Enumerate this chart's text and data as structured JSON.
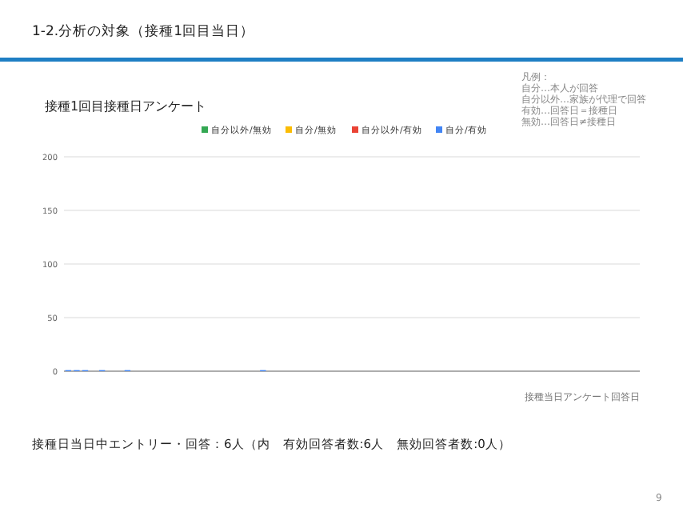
{
  "chart_data": {
    "type": "bar",
    "title": "1-2.分析の対象（接種1回目当日）",
    "subtitle": "接種1回目接種日アンケート",
    "xlabel": "接種当日アンケート回答日",
    "annotations": [
      "凡例：",
      "自分…本人が回答",
      "自分以外…家族が代理で回答",
      "有効…回答日＝接種日",
      "無効…回答日≠接種日",
      "接種日当日中エントリー・回答：6人（内　有効回答者数:6人　無効回答者数:0人）",
      "9"
    ],
    "categories": [
      null,
      null,
      null,
      null,
      null,
      null,
      null,
      null,
      null,
      null,
      null,
      null,
      null,
      null,
      null,
      null,
      null,
      null,
      null,
      null,
      null,
      null,
      null,
      null,
      null,
      null,
      null,
      null,
      null,
      null,
      null,
      null,
      null,
      null,
      null,
      null,
      null,
      null,
      null,
      null,
      null,
      null,
      null,
      null,
      null,
      null,
      null,
      null,
      null,
      null,
      null,
      null,
      null,
      null,
      null,
      null,
      null,
      null,
      null,
      null,
      null,
      null,
      null,
      null,
      null,
      null,
      null,
      null
    ],
    "series": [
      {
        "name": "自分以外/無効",
        "color": "#34a853",
        "values": [
          0,
          0,
          0,
          0,
          0,
          0,
          0,
          0,
          0,
          0,
          0,
          0,
          0,
          0,
          0,
          0,
          0,
          0,
          0,
          0,
          0,
          0,
          0,
          0,
          0,
          0,
          0,
          0,
          0,
          0,
          0,
          0,
          0,
          0,
          0,
          0,
          0,
          0,
          0,
          0,
          0,
          0,
          0,
          0,
          0,
          0,
          0,
          0,
          0,
          0,
          0,
          0,
          0,
          0,
          0,
          0,
          0,
          0,
          0,
          0,
          0,
          0,
          0,
          0,
          0,
          0,
          0,
          0
        ]
      },
      {
        "name": "自分/無効",
        "color": "#fbbc04",
        "values": [
          0,
          0,
          0,
          0,
          0,
          0,
          0,
          0,
          0,
          0,
          0,
          0,
          0,
          0,
          0,
          0,
          0,
          0,
          0,
          0,
          0,
          0,
          0,
          0,
          0,
          0,
          0,
          0,
          0,
          0,
          0,
          0,
          0,
          0,
          0,
          0,
          0,
          0,
          0,
          0,
          0,
          0,
          0,
          0,
          0,
          0,
          0,
          0,
          0,
          0,
          0,
          0,
          0,
          0,
          0,
          0,
          0,
          0,
          0,
          0,
          0,
          0,
          0,
          0,
          0,
          0,
          0,
          0
        ]
      },
      {
        "name": "自分以外/有効",
        "color": "#ea4335",
        "values": [
          0,
          0,
          0,
          0,
          0,
          0,
          0,
          0,
          0,
          0,
          0,
          0,
          0,
          0,
          0,
          0,
          0,
          0,
          0,
          0,
          0,
          0,
          0,
          0,
          0,
          0,
          0,
          0,
          0,
          0,
          0,
          0,
          0,
          0,
          0,
          0,
          0,
          0,
          0,
          0,
          0,
          0,
          0,
          0,
          0,
          0,
          0,
          0,
          0,
          0,
          0,
          0,
          0,
          0,
          0,
          0,
          0,
          0,
          0,
          0,
          0,
          0,
          0,
          0,
          0,
          0,
          0,
          0
        ]
      },
      {
        "name": "自分/有効",
        "color": "#4285f4",
        "values": [
          1,
          1,
          1,
          0,
          1,
          0,
          0,
          1,
          0,
          0,
          0,
          0,
          0,
          0,
          0,
          0,
          0,
          0,
          0,
          0,
          0,
          0,
          0,
          1,
          0,
          0,
          0,
          0,
          0,
          0,
          0,
          0,
          0,
          0,
          0,
          0,
          0,
          0,
          0,
          0,
          0,
          0,
          0,
          0,
          0,
          0,
          0,
          0,
          0,
          0,
          0,
          0,
          0,
          0,
          0,
          0,
          0,
          0,
          0,
          0,
          0,
          0,
          0,
          0,
          0,
          0,
          0,
          0
        ]
      }
    ],
    "ylim": [
      0,
      200
    ],
    "yticks": [
      0,
      50,
      100,
      150,
      200
    ],
    "grid": "y",
    "legend": "top"
  }
}
